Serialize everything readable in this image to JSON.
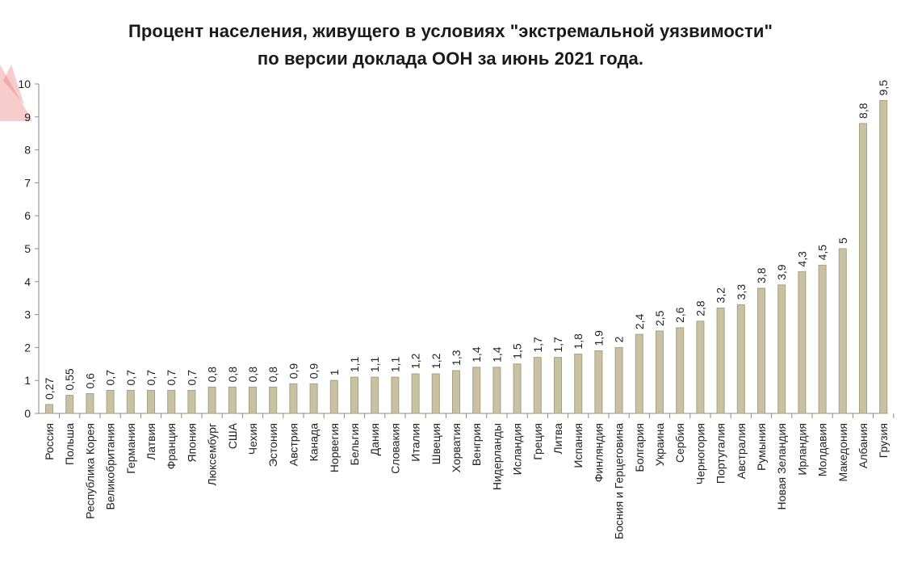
{
  "chart_data": {
    "type": "bar",
    "title": "Процент населения, живущего в условиях \"экстремальной уязвимости\"",
    "subtitle": "по версии доклада ООН за июнь 2021 года.",
    "xlabel": "",
    "ylabel": "",
    "ylim": [
      0,
      10
    ],
    "yticks": [
      "0",
      "1",
      "2",
      "3",
      "4",
      "5",
      "6",
      "7",
      "8",
      "9",
      "10"
    ],
    "grid": false,
    "categories": [
      "Россия",
      "Польша",
      "Республика Корея",
      "Великобритания",
      "Германия",
      "Латвия",
      "Франция",
      "Япония",
      "Люксембург",
      "США",
      "Чехия",
      "Эстония",
      "Австрия",
      "Канада",
      "Норвегия",
      "Бельгия",
      "Дания",
      "Словакия",
      "Италия",
      "Швеция",
      "Хорватия",
      "Венгрия",
      "Нидерланды",
      "Исландия",
      "Греция",
      "Литва",
      "Испания",
      "Финляндия",
      "Босния и Герцеговина",
      "Болгария",
      "Украина",
      "Сербия",
      "Черногория",
      "Португалия",
      "Австралия",
      "Румыния",
      "Новая Зеландия",
      "Ирландия",
      "Молдавия",
      "Македония",
      "Албания",
      "Грузия"
    ],
    "values": [
      0.27,
      0.55,
      0.6,
      0.7,
      0.7,
      0.7,
      0.7,
      0.7,
      0.8,
      0.8,
      0.8,
      0.8,
      0.9,
      0.9,
      1,
      1.1,
      1.1,
      1.1,
      1.2,
      1.2,
      1.3,
      1.4,
      1.4,
      1.5,
      1.7,
      1.7,
      1.8,
      1.9,
      2,
      2.4,
      2.5,
      2.6,
      2.8,
      3.2,
      3.3,
      3.8,
      3.9,
      4.3,
      4.5,
      5,
      8.8,
      9.5
    ],
    "data_labels": [
      "0,27",
      "0,55",
      "0,6",
      "0,7",
      "0,7",
      "0,7",
      "0,7",
      "0,7",
      "0,8",
      "0,8",
      "0,8",
      "0,8",
      "0,9",
      "0,9",
      "1",
      "1,1",
      "1,1",
      "1,1",
      "1,2",
      "1,2",
      "1,3",
      "1,4",
      "1,4",
      "1,5",
      "1,7",
      "1,7",
      "1,8",
      "1,9",
      "2",
      "2,4",
      "2,5",
      "2,6",
      "2,8",
      "3,2",
      "3,3",
      "3,8",
      "3,9",
      "4,3",
      "4,5",
      "5",
      "8,8",
      "9,5"
    ],
    "colors": {
      "bar_fill": "#c8c2a2",
      "bar_edge": "#a8a180",
      "axis": "#8a8a8a"
    }
  }
}
